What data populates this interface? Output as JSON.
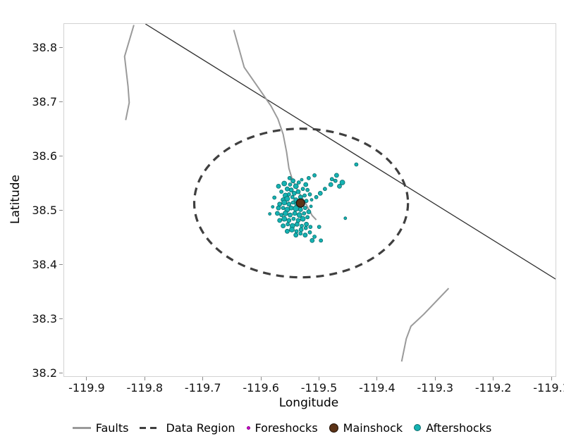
{
  "axes": {
    "xlim": [
      -119.94,
      -119.094
    ],
    "ylim": [
      38.196,
      38.845
    ],
    "xticks": [
      "-119.9",
      "-119.8",
      "-119.7",
      "-119.6",
      "-119.5",
      "-119.4",
      "-119.3",
      "-119.2",
      "-119.1"
    ],
    "yticks": [
      "38.8",
      "38.7",
      "38.6",
      "38.5",
      "38.4",
      "38.3",
      "38.2"
    ],
    "panel_border_color": "#d2d2d2"
  },
  "legend": {
    "items": [
      {
        "label": "Faults",
        "symbol": "line",
        "color": "#9a9a9a"
      },
      {
        "label": "Data Region",
        "symbol": "dashed-line",
        "color": "#3f3f3f"
      },
      {
        "label": "Foreshocks",
        "symbol": "dot",
        "color": "#cc00cc",
        "edge": "#8a008a",
        "size": 5
      },
      {
        "label": "Mainshock",
        "symbol": "dot",
        "color": "#5c3317",
        "edge": "#1f1005",
        "size": 13
      },
      {
        "label": "Aftershocks",
        "symbol": "dot",
        "color": "#15b2b2",
        "edge": "#0b6b6b",
        "size": 10
      }
    ]
  },
  "chart_data": {
    "type": "scatter",
    "title": "",
    "xlabel": "Longitude",
    "ylabel": "Latitude",
    "xlim": [
      -119.94,
      -119.094
    ],
    "ylim": [
      38.196,
      38.845
    ],
    "grid": false,
    "legend_position": "bottom",
    "faults": [
      {
        "color": "#2f2f2f",
        "width": 1.3,
        "points": [
          [
            -119.8,
            38.845
          ],
          [
            -119.094,
            38.375
          ]
        ]
      },
      {
        "color": "#9a9a9a",
        "width": 2,
        "points": [
          [
            -119.82,
            38.843
          ],
          [
            -119.836,
            38.785
          ],
          [
            -119.83,
            38.73
          ],
          [
            -119.828,
            38.7
          ],
          [
            -119.834,
            38.668
          ]
        ]
      },
      {
        "color": "#9a9a9a",
        "width": 2,
        "points": [
          [
            -119.648,
            38.834
          ],
          [
            -119.63,
            38.765
          ],
          [
            -119.602,
            38.722
          ],
          [
            -119.584,
            38.694
          ],
          [
            -119.572,
            38.67
          ],
          [
            -119.563,
            38.642
          ],
          [
            -119.557,
            38.609
          ],
          [
            -119.553,
            38.579
          ],
          [
            -119.548,
            38.561
          ],
          [
            -119.539,
            38.54
          ],
          [
            -119.524,
            38.514
          ],
          [
            -119.513,
            38.492
          ],
          [
            -119.506,
            38.484
          ]
        ]
      },
      {
        "color": "#9a9a9a",
        "width": 2,
        "points": [
          [
            -119.278,
            38.358
          ],
          [
            -119.321,
            38.31
          ],
          [
            -119.343,
            38.288
          ],
          [
            -119.351,
            38.265
          ],
          [
            -119.359,
            38.223
          ]
        ]
      }
    ],
    "data_region": {
      "center": [
        -119.532,
        38.515
      ],
      "rx": 0.184,
      "ry": 0.137,
      "color": "#3f3f3f",
      "dash": "11 8",
      "width": 3.2
    },
    "foreshocks": {
      "color": "#cc00cc",
      "edge": "#8a008a",
      "points": []
    },
    "mainshock": {
      "color": "#5c3317",
      "edge": "#141414",
      "points": [
        [
          -119.533,
          38.515,
          6
        ]
      ]
    },
    "aftershocks": {
      "color": "#15b2b2",
      "edge": "#0b6b6b",
      "points": [
        [
          -119.571,
          38.546,
          3
        ],
        [
          -119.566,
          38.536,
          2.5
        ],
        [
          -119.561,
          38.551,
          3.5
        ],
        [
          -119.556,
          38.541,
          3
        ],
        [
          -119.551,
          38.549,
          2.5
        ],
        [
          -119.546,
          38.556,
          3
        ],
        [
          -119.541,
          38.546,
          3.5
        ],
        [
          -119.536,
          38.553,
          2.5
        ],
        [
          -119.549,
          38.539,
          3
        ],
        [
          -119.559,
          38.529,
          3.5
        ],
        [
          -119.553,
          38.531,
          2.5
        ],
        [
          -119.544,
          38.533,
          3
        ],
        [
          -119.537,
          38.536,
          3
        ],
        [
          -119.529,
          38.541,
          2.5
        ],
        [
          -119.524,
          38.549,
          3
        ],
        [
          -119.521,
          38.539,
          2.5
        ],
        [
          -119.563,
          38.521,
          3
        ],
        [
          -119.556,
          38.523,
          3.5
        ],
        [
          -119.547,
          38.526,
          2.5
        ],
        [
          -119.541,
          38.521,
          3
        ],
        [
          -119.533,
          38.526,
          3
        ],
        [
          -119.526,
          38.529,
          2.5
        ],
        [
          -119.517,
          38.531,
          2.5
        ],
        [
          -119.569,
          38.513,
          3
        ],
        [
          -119.561,
          38.516,
          3.5
        ],
        [
          -119.553,
          38.513,
          3
        ],
        [
          -119.546,
          38.516,
          2.5
        ],
        [
          -119.539,
          38.513,
          3.5
        ],
        [
          -119.531,
          38.516,
          3
        ],
        [
          -119.523,
          38.519,
          2.5
        ],
        [
          -119.514,
          38.521,
          2
        ],
        [
          -119.571,
          38.506,
          3
        ],
        [
          -119.563,
          38.506,
          2.5
        ],
        [
          -119.556,
          38.503,
          3.5
        ],
        [
          -119.549,
          38.506,
          3
        ],
        [
          -119.541,
          38.505,
          4
        ],
        [
          -119.533,
          38.503,
          3
        ],
        [
          -119.525,
          38.506,
          2.5
        ],
        [
          -119.515,
          38.509,
          2
        ],
        [
          -119.573,
          38.496,
          3
        ],
        [
          -119.566,
          38.493,
          2.5
        ],
        [
          -119.559,
          38.496,
          3.5
        ],
        [
          -119.551,
          38.493,
          3
        ],
        [
          -119.543,
          38.496,
          3
        ],
        [
          -119.535,
          38.493,
          3.5
        ],
        [
          -119.527,
          38.496,
          2.5
        ],
        [
          -119.519,
          38.499,
          3
        ],
        [
          -119.569,
          38.483,
          3
        ],
        [
          -119.561,
          38.486,
          3.5
        ],
        [
          -119.553,
          38.483,
          3
        ],
        [
          -119.545,
          38.486,
          2.5
        ],
        [
          -119.537,
          38.483,
          3
        ],
        [
          -119.529,
          38.486,
          3.5
        ],
        [
          -119.521,
          38.489,
          2.5
        ],
        [
          -119.563,
          38.473,
          3
        ],
        [
          -119.555,
          38.476,
          2.5
        ],
        [
          -119.547,
          38.473,
          3.5
        ],
        [
          -119.539,
          38.476,
          3
        ],
        [
          -119.531,
          38.473,
          2.5
        ],
        [
          -119.523,
          38.476,
          3
        ],
        [
          -119.556,
          38.463,
          3
        ],
        [
          -119.548,
          38.466,
          3.5
        ],
        [
          -119.54,
          38.463,
          2.5
        ],
        [
          -119.532,
          38.466,
          3
        ],
        [
          -119.524,
          38.469,
          2.5
        ],
        [
          -119.516,
          38.471,
          2.5
        ],
        [
          -119.541,
          38.456,
          3
        ],
        [
          -119.533,
          38.459,
          2.5
        ],
        [
          -119.525,
          38.456,
          3
        ],
        [
          -119.517,
          38.461,
          2.5
        ],
        [
          -119.506,
          38.526,
          2.5
        ],
        [
          -119.499,
          38.533,
          3
        ],
        [
          -119.491,
          38.541,
          2.5
        ],
        [
          -119.481,
          38.549,
          3
        ],
        [
          -119.473,
          38.556,
          2.5
        ],
        [
          -119.471,
          38.566,
          3
        ],
        [
          -119.479,
          38.559,
          2.5
        ],
        [
          -119.466,
          38.546,
          3
        ],
        [
          -119.461,
          38.553,
          3.5
        ],
        [
          -119.437,
          38.586,
          2.5
        ],
        [
          -119.456,
          38.487,
          2
        ],
        [
          -119.501,
          38.471,
          2.5
        ],
        [
          -119.509,
          38.453,
          2.5
        ],
        [
          -119.498,
          38.446,
          2.5
        ],
        [
          -119.513,
          38.446,
          3
        ],
        [
          -119.509,
          38.566,
          2.5
        ],
        [
          -119.519,
          38.561,
          2.5
        ],
        [
          -119.552,
          38.561,
          2.5
        ],
        [
          -119.531,
          38.558,
          2
        ],
        [
          -119.578,
          38.525,
          2.5
        ],
        [
          -119.581,
          38.508,
          2
        ],
        [
          -119.586,
          38.495,
          2
        ]
      ]
    }
  }
}
